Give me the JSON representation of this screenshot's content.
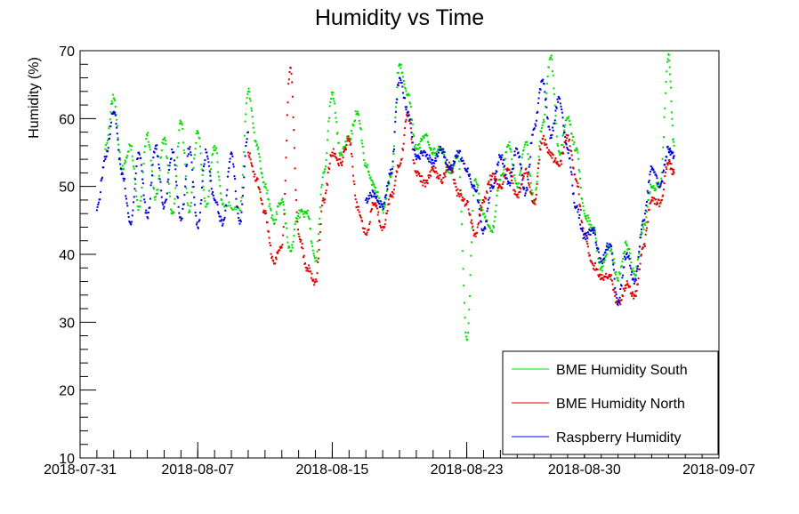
{
  "chart_data": {
    "type": "scatter",
    "title": "Humidity vs Time",
    "xlabel": "",
    "ylabel": "Humidity (%)",
    "x_type": "date",
    "xlim": [
      "2018-07-31",
      "2018-09-07"
    ],
    "ylim": [
      10,
      70
    ],
    "x_ticks": [
      "2018-07-31",
      "2018-08-07",
      "2018-08-15",
      "2018-08-23",
      "2018-08-30",
      "2018-09-07"
    ],
    "y_ticks": [
      10,
      20,
      30,
      40,
      50,
      60,
      70
    ],
    "grid": false,
    "legend_position": "bottom-right",
    "series": [
      {
        "name": "BME Humidity South",
        "color": "#00dd00",
        "points": [
          [
            "2018-08-01 12:00",
            55.5
          ],
          [
            "2018-08-02 00:00",
            63.0
          ],
          [
            "2018-08-02 12:00",
            52.5
          ],
          [
            "2018-08-03 00:00",
            56.0
          ],
          [
            "2018-08-03 12:00",
            47.0
          ],
          [
            "2018-08-04 00:00",
            57.5
          ],
          [
            "2018-08-04 12:00",
            48.5
          ],
          [
            "2018-08-05 00:00",
            57.0
          ],
          [
            "2018-08-05 12:00",
            46.0
          ],
          [
            "2018-08-06 00:00",
            59.5
          ],
          [
            "2018-08-06 12:00",
            46.5
          ],
          [
            "2018-08-07 00:00",
            58.0
          ],
          [
            "2018-08-07 12:00",
            47.0
          ],
          [
            "2018-08-08 00:00",
            56.0
          ],
          [
            "2018-08-08 12:00",
            47.5
          ],
          [
            "2018-08-09 12:00",
            46.5
          ],
          [
            "2018-08-10 00:00",
            64.0
          ],
          [
            "2018-08-10 12:00",
            56.0
          ],
          [
            "2018-08-11 00:00",
            50.0
          ],
          [
            "2018-08-11 12:00",
            45.0
          ],
          [
            "2018-08-12 00:00",
            48.0
          ],
          [
            "2018-08-12 12:00",
            40.5
          ],
          [
            "2018-08-13 00:00",
            46.0
          ],
          [
            "2018-08-13 12:00",
            46.0
          ],
          [
            "2018-08-14 00:00",
            39.0
          ],
          [
            "2018-08-14 12:00",
            52.0
          ],
          [
            "2018-08-15 00:00",
            63.5
          ],
          [
            "2018-08-15 12:00",
            55.0
          ],
          [
            "2018-08-16 00:00",
            57.0
          ],
          [
            "2018-08-16 12:00",
            61.0
          ],
          [
            "2018-08-17 00:00",
            53.0
          ],
          [
            "2018-08-17 12:00",
            50.0
          ],
          [
            "2018-08-18 00:00",
            46.5
          ],
          [
            "2018-08-18 12:00",
            51.5
          ],
          [
            "2018-08-19 00:00",
            68.0
          ],
          [
            "2018-08-19 12:00",
            63.5
          ],
          [
            "2018-08-20 00:00",
            55.5
          ],
          [
            "2018-08-20 12:00",
            57.5
          ],
          [
            "2018-08-21 00:00",
            55.0
          ],
          [
            "2018-08-21 12:00",
            55.5
          ],
          [
            "2018-08-22 00:00",
            52.0
          ],
          [
            "2018-08-22 12:00",
            54.5
          ],
          [
            "2018-08-23 00:00",
            27.5
          ],
          [
            "2018-08-23 12:00",
            51.0
          ],
          [
            "2018-08-24 00:00",
            46.0
          ],
          [
            "2018-08-24 12:00",
            43.5
          ],
          [
            "2018-08-25 00:00",
            51.0
          ],
          [
            "2018-08-25 12:00",
            56.0
          ],
          [
            "2018-08-26 00:00",
            50.0
          ],
          [
            "2018-08-26 12:00",
            56.5
          ],
          [
            "2018-08-27 00:00",
            48.0
          ],
          [
            "2018-08-27 12:00",
            59.0
          ],
          [
            "2018-08-28 00:00",
            69.0
          ],
          [
            "2018-08-28 12:00",
            55.0
          ],
          [
            "2018-08-29 00:00",
            60.0
          ],
          [
            "2018-08-29 12:00",
            55.5
          ],
          [
            "2018-08-30 00:00",
            46.0
          ],
          [
            "2018-08-30 12:00",
            44.0
          ],
          [
            "2018-08-31 00:00",
            38.0
          ],
          [
            "2018-08-31 12:00",
            41.0
          ],
          [
            "2018-09-01 00:00",
            36.5
          ],
          [
            "2018-09-01 12:00",
            41.5
          ],
          [
            "2018-09-02 00:00",
            37.0
          ],
          [
            "2018-09-02 12:00",
            44.0
          ],
          [
            "2018-09-03 00:00",
            50.0
          ],
          [
            "2018-09-03 12:00",
            50.0
          ],
          [
            "2018-09-04 00:00",
            69.5
          ],
          [
            "2018-09-04 08:00",
            56.0
          ]
        ]
      },
      {
        "name": "BME Humidity North",
        "color": "#dd0000",
        "points": [
          [
            "2018-08-10 00:00",
            55.0
          ],
          [
            "2018-08-10 12:00",
            51.0
          ],
          [
            "2018-08-11 00:00",
            46.0
          ],
          [
            "2018-08-11 12:00",
            39.0
          ],
          [
            "2018-08-12 00:00",
            41.0
          ],
          [
            "2018-08-12 12:00",
            67.5
          ],
          [
            "2018-08-13 00:00",
            43.0
          ],
          [
            "2018-08-13 12:00",
            38.0
          ],
          [
            "2018-08-14 00:00",
            36.0
          ],
          [
            "2018-08-14 12:00",
            48.0
          ],
          [
            "2018-08-15 00:00",
            55.0
          ],
          [
            "2018-08-15 12:00",
            53.5
          ],
          [
            "2018-08-16 00:00",
            57.0
          ],
          [
            "2018-08-16 12:00",
            47.0
          ],
          [
            "2018-08-17 00:00",
            43.0
          ],
          [
            "2018-08-17 12:00",
            47.5
          ],
          [
            "2018-08-18 00:00",
            44.0
          ],
          [
            "2018-08-18 12:00",
            48.5
          ],
          [
            "2018-08-19 00:00",
            53.0
          ],
          [
            "2018-08-19 12:00",
            60.5
          ],
          [
            "2018-08-20 00:00",
            52.0
          ],
          [
            "2018-08-20 12:00",
            50.5
          ],
          [
            "2018-08-21 00:00",
            52.5
          ],
          [
            "2018-08-21 12:00",
            51.0
          ],
          [
            "2018-08-22 00:00",
            53.0
          ],
          [
            "2018-08-22 12:00",
            49.0
          ],
          [
            "2018-08-23 00:00",
            47.5
          ],
          [
            "2018-08-23 12:00",
            43.0
          ],
          [
            "2018-08-24 00:00",
            48.0
          ],
          [
            "2018-08-24 12:00",
            51.5
          ],
          [
            "2018-08-25 00:00",
            50.0
          ],
          [
            "2018-08-25 12:00",
            52.5
          ],
          [
            "2018-08-26 00:00",
            48.5
          ],
          [
            "2018-08-26 12:00",
            52.5
          ],
          [
            "2018-08-27 00:00",
            47.5
          ],
          [
            "2018-08-27 12:00",
            57.0
          ],
          [
            "2018-08-28 00:00",
            54.5
          ],
          [
            "2018-08-28 12:00",
            53.0
          ],
          [
            "2018-08-29 00:00",
            57.5
          ],
          [
            "2018-08-29 12:00",
            51.0
          ],
          [
            "2018-08-30 00:00",
            43.0
          ],
          [
            "2018-08-30 12:00",
            38.5
          ],
          [
            "2018-08-31 00:00",
            36.5
          ],
          [
            "2018-08-31 12:00",
            37.0
          ],
          [
            "2018-09-01 00:00",
            32.5
          ],
          [
            "2018-09-01 12:00",
            35.5
          ],
          [
            "2018-09-02 00:00",
            34.0
          ],
          [
            "2018-09-02 12:00",
            41.0
          ],
          [
            "2018-09-03 00:00",
            48.0
          ],
          [
            "2018-09-03 12:00",
            47.5
          ],
          [
            "2018-09-04 00:00",
            53.5
          ],
          [
            "2018-09-04 08:00",
            52.0
          ]
        ]
      },
      {
        "name": "Raspberry Humidity",
        "color": "#0000dd",
        "points": [
          [
            "2018-08-01 00:00",
            46.5
          ],
          [
            "2018-08-01 12:00",
            54.0
          ],
          [
            "2018-08-02 00:00",
            61.0
          ],
          [
            "2018-08-02 12:00",
            52.0
          ],
          [
            "2018-08-03 00:00",
            44.5
          ],
          [
            "2018-08-03 12:00",
            55.0
          ],
          [
            "2018-08-04 00:00",
            45.5
          ],
          [
            "2018-08-04 12:00",
            56.0
          ],
          [
            "2018-08-05 00:00",
            47.0
          ],
          [
            "2018-08-05 12:00",
            55.0
          ],
          [
            "2018-08-06 00:00",
            45.0
          ],
          [
            "2018-08-06 12:00",
            55.5
          ],
          [
            "2018-08-07 00:00",
            44.0
          ],
          [
            "2018-08-07 12:00",
            55.0
          ],
          [
            "2018-08-08 00:00",
            48.0
          ],
          [
            "2018-08-08 12:00",
            44.5
          ],
          [
            "2018-08-09 00:00",
            55.0
          ],
          [
            "2018-08-09 12:00",
            44.5
          ],
          [
            "2018-08-10 00:00",
            58.0
          ],
          [
            "2018-08-17 00:00",
            48.0
          ],
          [
            "2018-08-17 12:00",
            49.0
          ],
          [
            "2018-08-18 00:00",
            47.0
          ],
          [
            "2018-08-18 12:00",
            52.0
          ],
          [
            "2018-08-19 00:00",
            66.0
          ],
          [
            "2018-08-19 12:00",
            61.0
          ],
          [
            "2018-08-20 00:00",
            54.0
          ],
          [
            "2018-08-20 12:00",
            55.0
          ],
          [
            "2018-08-21 00:00",
            53.5
          ],
          [
            "2018-08-21 12:00",
            55.5
          ],
          [
            "2018-08-22 00:00",
            52.5
          ],
          [
            "2018-08-22 12:00",
            55.0
          ],
          [
            "2018-08-23 00:00",
            52.5
          ],
          [
            "2018-08-23 12:00",
            49.5
          ],
          [
            "2018-08-24 00:00",
            43.5
          ],
          [
            "2018-08-24 12:00",
            50.0
          ],
          [
            "2018-08-25 00:00",
            54.5
          ],
          [
            "2018-08-25 12:00",
            50.5
          ],
          [
            "2018-08-26 00:00",
            55.5
          ],
          [
            "2018-08-26 12:00",
            49.0
          ],
          [
            "2018-08-27 00:00",
            58.5
          ],
          [
            "2018-08-27 12:00",
            65.5
          ],
          [
            "2018-08-28 00:00",
            57.5
          ],
          [
            "2018-08-28 12:00",
            63.0
          ],
          [
            "2018-08-29 00:00",
            55.5
          ],
          [
            "2018-08-29 12:00",
            47.0
          ],
          [
            "2018-08-30 00:00",
            42.5
          ],
          [
            "2018-08-30 12:00",
            43.5
          ],
          [
            "2018-08-31 00:00",
            39.0
          ],
          [
            "2018-08-31 12:00",
            41.5
          ],
          [
            "2018-09-01 00:00",
            33.0
          ],
          [
            "2018-09-01 12:00",
            40.0
          ],
          [
            "2018-09-02 00:00",
            36.0
          ],
          [
            "2018-09-02 12:00",
            45.0
          ],
          [
            "2018-09-03 00:00",
            52.5
          ],
          [
            "2018-09-03 12:00",
            50.0
          ],
          [
            "2018-09-04 00:00",
            55.5
          ],
          [
            "2018-09-04 08:00",
            54.5
          ]
        ]
      }
    ]
  }
}
